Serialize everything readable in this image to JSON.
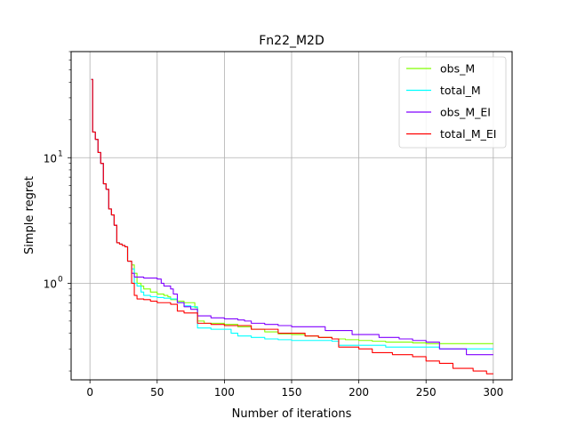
{
  "chart_data": {
    "type": "line",
    "title": "Fn22_M2D",
    "xlabel": "Number of iterations",
    "ylabel": "Simple regret",
    "yscale": "log",
    "xlim": [
      -14,
      314
    ],
    "ylim": [
      0.17,
      70
    ],
    "x_ticks": [
      0,
      50,
      100,
      150,
      200,
      250,
      300
    ],
    "y_ticks": [
      {
        "value": 1,
        "label": "10",
        "exp": "0"
      },
      {
        "value": 10,
        "label": "10",
        "exp": "1"
      }
    ],
    "grid": true,
    "legend_position": "upper right",
    "series": [
      {
        "name": "obs_M",
        "color": "#80ff00",
        "points": [
          [
            1,
            42
          ],
          [
            2,
            16
          ],
          [
            4,
            14
          ],
          [
            6,
            11
          ],
          [
            8,
            9
          ],
          [
            10,
            6.2
          ],
          [
            12,
            5.6
          ],
          [
            14,
            3.9
          ],
          [
            16,
            3.5
          ],
          [
            18,
            2.9
          ],
          [
            20,
            2.1
          ],
          [
            22,
            2.05
          ],
          [
            24,
            2
          ],
          [
            26,
            1.95
          ],
          [
            28,
            1.5
          ],
          [
            30,
            1.5
          ],
          [
            31,
            1.4
          ],
          [
            33,
            1.2
          ],
          [
            35,
            1.0
          ],
          [
            38,
            0.95
          ],
          [
            40,
            0.9
          ],
          [
            45,
            0.85
          ],
          [
            50,
            0.82
          ],
          [
            55,
            0.8
          ],
          [
            58,
            0.78
          ],
          [
            60,
            0.74
          ],
          [
            65,
            0.72
          ],
          [
            70,
            0.7
          ],
          [
            75,
            0.7
          ],
          [
            78,
            0.64
          ],
          [
            80,
            0.5
          ],
          [
            85,
            0.48
          ],
          [
            90,
            0.48
          ],
          [
            95,
            0.48
          ],
          [
            100,
            0.47
          ],
          [
            110,
            0.45
          ],
          [
            120,
            0.43
          ],
          [
            130,
            0.41
          ],
          [
            140,
            0.395
          ],
          [
            150,
            0.39
          ],
          [
            160,
            0.38
          ],
          [
            170,
            0.37
          ],
          [
            180,
            0.36
          ],
          [
            190,
            0.355
          ],
          [
            200,
            0.35
          ],
          [
            210,
            0.345
          ],
          [
            220,
            0.34
          ],
          [
            230,
            0.34
          ],
          [
            240,
            0.335
          ],
          [
            250,
            0.33
          ],
          [
            260,
            0.33
          ],
          [
            270,
            0.33
          ],
          [
            280,
            0.33
          ],
          [
            290,
            0.33
          ],
          [
            300,
            0.33
          ]
        ]
      },
      {
        "name": "total_M",
        "color": "#00ffff",
        "points": [
          [
            1,
            42
          ],
          [
            2,
            16
          ],
          [
            4,
            14
          ],
          [
            6,
            11
          ],
          [
            8,
            9
          ],
          [
            10,
            6.2
          ],
          [
            12,
            5.6
          ],
          [
            14,
            3.9
          ],
          [
            16,
            3.5
          ],
          [
            18,
            2.9
          ],
          [
            20,
            2.1
          ],
          [
            22,
            2.05
          ],
          [
            24,
            2
          ],
          [
            26,
            1.95
          ],
          [
            28,
            1.5
          ],
          [
            30,
            1.5
          ],
          [
            31,
            1.3
          ],
          [
            33,
            1.0
          ],
          [
            35,
            0.95
          ],
          [
            38,
            0.85
          ],
          [
            40,
            0.8
          ],
          [
            45,
            0.78
          ],
          [
            50,
            0.77
          ],
          [
            55,
            0.76
          ],
          [
            60,
            0.75
          ],
          [
            65,
            0.7
          ],
          [
            70,
            0.66
          ],
          [
            75,
            0.65
          ],
          [
            80,
            0.44
          ],
          [
            90,
            0.43
          ],
          [
            100,
            0.43
          ],
          [
            105,
            0.4
          ],
          [
            110,
            0.38
          ],
          [
            120,
            0.37
          ],
          [
            130,
            0.36
          ],
          [
            140,
            0.355
          ],
          [
            150,
            0.35
          ],
          [
            160,
            0.35
          ],
          [
            170,
            0.35
          ],
          [
            180,
            0.345
          ],
          [
            185,
            0.32
          ],
          [
            200,
            0.32
          ],
          [
            220,
            0.31
          ],
          [
            240,
            0.31
          ],
          [
            250,
            0.31
          ],
          [
            260,
            0.3
          ],
          [
            280,
            0.3
          ],
          [
            300,
            0.3
          ]
        ]
      },
      {
        "name": "obs_M_EI",
        "color": "#8000ff",
        "points": [
          [
            1,
            42
          ],
          [
            2,
            16
          ],
          [
            4,
            14
          ],
          [
            6,
            11
          ],
          [
            8,
            9
          ],
          [
            10,
            6.2
          ],
          [
            12,
            5.6
          ],
          [
            14,
            3.9
          ],
          [
            16,
            3.5
          ],
          [
            18,
            2.9
          ],
          [
            20,
            2.1
          ],
          [
            22,
            2.05
          ],
          [
            24,
            2
          ],
          [
            26,
            1.95
          ],
          [
            28,
            1.5
          ],
          [
            30,
            1.5
          ],
          [
            31,
            1.2
          ],
          [
            33,
            1.12
          ],
          [
            40,
            1.1
          ],
          [
            45,
            1.1
          ],
          [
            50,
            1.08
          ],
          [
            53,
            1.0
          ],
          [
            55,
            0.95
          ],
          [
            60,
            0.9
          ],
          [
            62,
            0.82
          ],
          [
            65,
            0.7
          ],
          [
            70,
            0.65
          ],
          [
            75,
            0.62
          ],
          [
            80,
            0.55
          ],
          [
            90,
            0.53
          ],
          [
            100,
            0.52
          ],
          [
            110,
            0.51
          ],
          [
            115,
            0.5
          ],
          [
            120,
            0.48
          ],
          [
            130,
            0.47
          ],
          [
            140,
            0.46
          ],
          [
            150,
            0.45
          ],
          [
            170,
            0.45
          ],
          [
            175,
            0.42
          ],
          [
            190,
            0.42
          ],
          [
            195,
            0.39
          ],
          [
            210,
            0.39
          ],
          [
            215,
            0.37
          ],
          [
            230,
            0.36
          ],
          [
            240,
            0.35
          ],
          [
            250,
            0.34
          ],
          [
            260,
            0.3
          ],
          [
            280,
            0.27
          ],
          [
            300,
            0.27
          ]
        ]
      },
      {
        "name": "total_M_EI",
        "color": "#ff0000",
        "points": [
          [
            1,
            42
          ],
          [
            2,
            16
          ],
          [
            4,
            14
          ],
          [
            6,
            11
          ],
          [
            8,
            9
          ],
          [
            10,
            6.2
          ],
          [
            12,
            5.6
          ],
          [
            14,
            3.9
          ],
          [
            16,
            3.5
          ],
          [
            18,
            2.9
          ],
          [
            20,
            2.1
          ],
          [
            22,
            2.05
          ],
          [
            24,
            2
          ],
          [
            26,
            1.95
          ],
          [
            28,
            1.5
          ],
          [
            30,
            1.5
          ],
          [
            31,
            1.0
          ],
          [
            33,
            0.8
          ],
          [
            35,
            0.75
          ],
          [
            40,
            0.74
          ],
          [
            45,
            0.72
          ],
          [
            50,
            0.7
          ],
          [
            60,
            0.68
          ],
          [
            65,
            0.6
          ],
          [
            70,
            0.58
          ],
          [
            80,
            0.48
          ],
          [
            90,
            0.47
          ],
          [
            100,
            0.46
          ],
          [
            120,
            0.43
          ],
          [
            140,
            0.4
          ],
          [
            160,
            0.38
          ],
          [
            170,
            0.37
          ],
          [
            180,
            0.36
          ],
          [
            185,
            0.31
          ],
          [
            200,
            0.3
          ],
          [
            210,
            0.28
          ],
          [
            225,
            0.27
          ],
          [
            240,
            0.26
          ],
          [
            250,
            0.24
          ],
          [
            260,
            0.23
          ],
          [
            270,
            0.21
          ],
          [
            285,
            0.2
          ],
          [
            295,
            0.19
          ],
          [
            300,
            0.19
          ]
        ]
      }
    ]
  }
}
